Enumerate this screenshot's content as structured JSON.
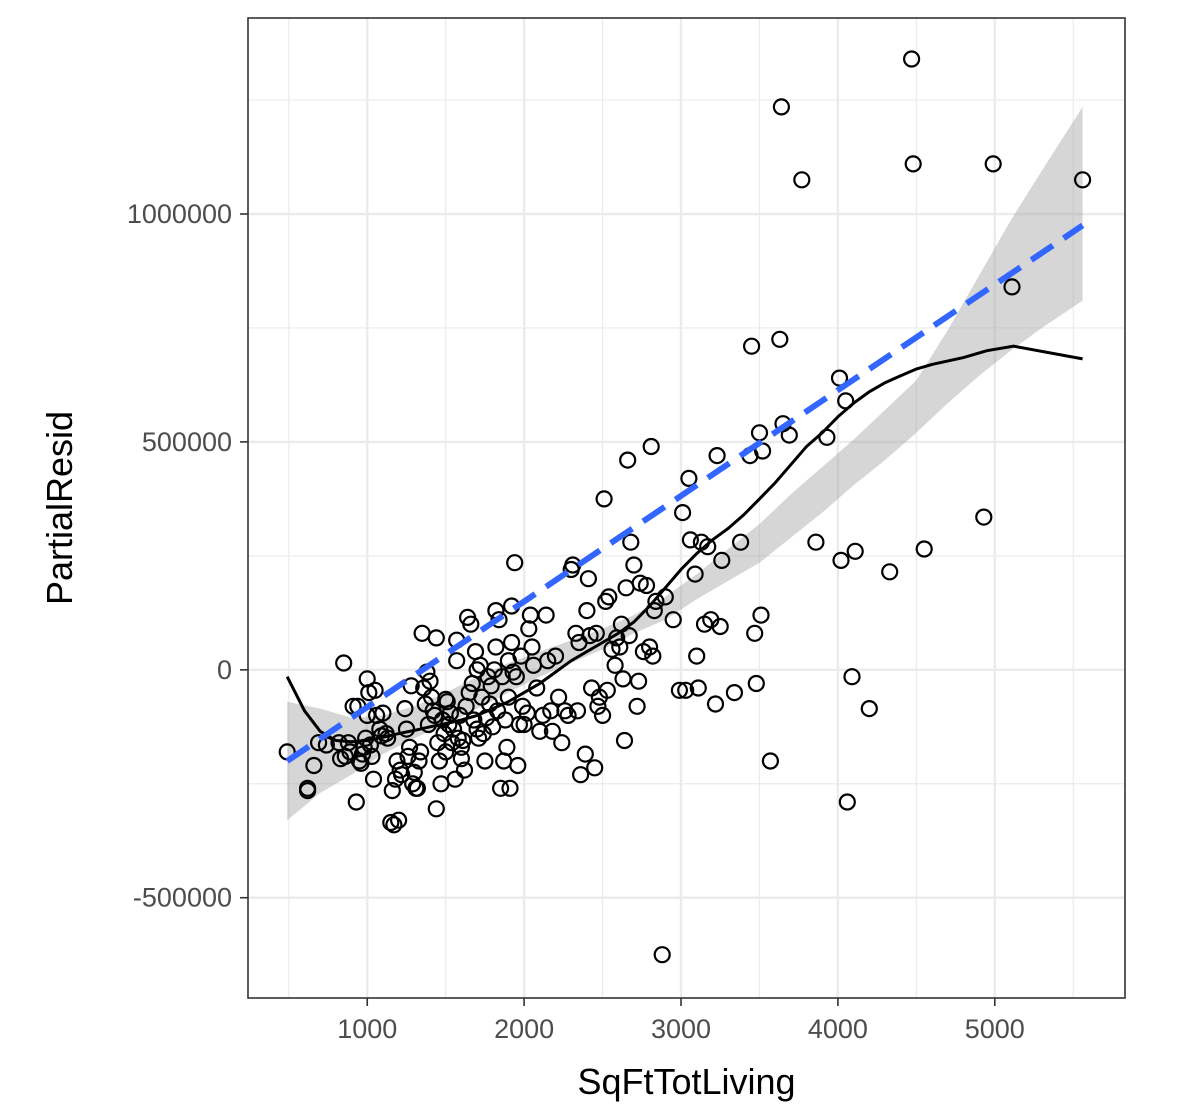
{
  "chart_data": {
    "type": "scatter",
    "xlabel": "SqFtTotLiving",
    "ylabel": "PartialResid",
    "xlim": [
      240,
      5830
    ],
    "ylim": [
      -720000,
      1430000
    ],
    "x_ticks": [
      1000,
      2000,
      3000,
      4000,
      5000
    ],
    "x_tick_labels": [
      "1000",
      "2000",
      "3000",
      "4000",
      "5000"
    ],
    "y_ticks": [
      -500000,
      0,
      500000,
      1000000
    ],
    "y_tick_labels": [
      "-500000",
      "0",
      "500000",
      "1000000"
    ],
    "grid": true,
    "theme": "bw",
    "colors": {
      "points": "#000000",
      "loess": "#000000",
      "fit": "#3366ff",
      "band": "#999999",
      "grid": "#ebebeb",
      "panel_border": "#333333"
    },
    "points": [
      [
        490,
        -180000
      ],
      [
        620,
        -260000
      ],
      [
        620,
        -265000
      ],
      [
        660,
        -210000
      ],
      [
        690,
        -160000
      ],
      [
        740,
        -165000
      ],
      [
        820,
        -160000
      ],
      [
        830,
        -195000
      ],
      [
        850,
        15000
      ],
      [
        860,
        -190000
      ],
      [
        880,
        -160000
      ],
      [
        890,
        -180000
      ],
      [
        910,
        -80000
      ],
      [
        930,
        -290000
      ],
      [
        940,
        -80000
      ],
      [
        950,
        -200000
      ],
      [
        960,
        -205000
      ],
      [
        970,
        -185000
      ],
      [
        980,
        -170000
      ],
      [
        990,
        -150000
      ],
      [
        1000,
        -100000
      ],
      [
        1000,
        -20000
      ],
      [
        1010,
        -50000
      ],
      [
        1020,
        -165000
      ],
      [
        1030,
        -190000
      ],
      [
        1040,
        -240000
      ],
      [
        1050,
        -45000
      ],
      [
        1060,
        -100000
      ],
      [
        1080,
        -130000
      ],
      [
        1090,
        -145000
      ],
      [
        1100,
        -95000
      ],
      [
        1120,
        -140000
      ],
      [
        1130,
        -150000
      ],
      [
        1150,
        -335000
      ],
      [
        1160,
        -265000
      ],
      [
        1170,
        -340000
      ],
      [
        1180,
        -240000
      ],
      [
        1190,
        -200000
      ],
      [
        1200,
        -330000
      ],
      [
        1210,
        -220000
      ],
      [
        1220,
        -230000
      ],
      [
        1240,
        -85000
      ],
      [
        1250,
        -130000
      ],
      [
        1260,
        -190000
      ],
      [
        1270,
        -170000
      ],
      [
        1280,
        -35000
      ],
      [
        1290,
        -250000
      ],
      [
        1300,
        -225000
      ],
      [
        1310,
        -260000
      ],
      [
        1320,
        -260000
      ],
      [
        1330,
        -200000
      ],
      [
        1340,
        -180000
      ],
      [
        1350,
        80000
      ],
      [
        1360,
        -40000
      ],
      [
        1370,
        -75000
      ],
      [
        1380,
        -5000
      ],
      [
        1390,
        -120000
      ],
      [
        1400,
        -25000
      ],
      [
        1410,
        -60000
      ],
      [
        1420,
        -90000
      ],
      [
        1430,
        -100000
      ],
      [
        1440,
        -305000
      ],
      [
        1440,
        70000
      ],
      [
        1450,
        -160000
      ],
      [
        1460,
        -200000
      ],
      [
        1470,
        -250000
      ],
      [
        1480,
        -110000
      ],
      [
        1490,
        -140000
      ],
      [
        1500,
        -180000
      ],
      [
        1500,
        -65000
      ],
      [
        1510,
        -70000
      ],
      [
        1520,
        -120000
      ],
      [
        1530,
        -95000
      ],
      [
        1540,
        -160000
      ],
      [
        1550,
        -130000
      ],
      [
        1560,
        -240000
      ],
      [
        1570,
        20000
      ],
      [
        1570,
        65000
      ],
      [
        1580,
        -150000
      ],
      [
        1590,
        -100000
      ],
      [
        1600,
        -170000
      ],
      [
        1600,
        -195000
      ],
      [
        1610,
        -155000
      ],
      [
        1620,
        -220000
      ],
      [
        1630,
        -80000
      ],
      [
        1640,
        115000
      ],
      [
        1650,
        -50000
      ],
      [
        1660,
        100000
      ],
      [
        1670,
        -30000
      ],
      [
        1680,
        -110000
      ],
      [
        1690,
        40000
      ],
      [
        1700,
        -130000
      ],
      [
        1700,
        0
      ],
      [
        1710,
        -150000
      ],
      [
        1720,
        10000
      ],
      [
        1730,
        -60000
      ],
      [
        1740,
        -140000
      ],
      [
        1750,
        -200000
      ],
      [
        1760,
        -105000
      ],
      [
        1770,
        -15000
      ],
      [
        1780,
        -75000
      ],
      [
        1790,
        -35000
      ],
      [
        1800,
        -125000
      ],
      [
        1810,
        0
      ],
      [
        1820,
        130000
      ],
      [
        1820,
        50000
      ],
      [
        1830,
        -90000
      ],
      [
        1840,
        110000
      ],
      [
        1850,
        -260000
      ],
      [
        1860,
        -15000
      ],
      [
        1870,
        -200000
      ],
      [
        1880,
        -110000
      ],
      [
        1890,
        -170000
      ],
      [
        1900,
        20000
      ],
      [
        1900,
        -60000
      ],
      [
        1910,
        -260000
      ],
      [
        1920,
        140000
      ],
      [
        1920,
        60000
      ],
      [
        1930,
        -5000
      ],
      [
        1940,
        235000
      ],
      [
        1950,
        -15000
      ],
      [
        1960,
        -210000
      ],
      [
        1970,
        -120000
      ],
      [
        1980,
        30000
      ],
      [
        1990,
        -80000
      ],
      [
        2000,
        -120000
      ],
      [
        2020,
        -95000
      ],
      [
        2030,
        90000
      ],
      [
        2040,
        120000
      ],
      [
        2050,
        50000
      ],
      [
        2060,
        10000
      ],
      [
        2080,
        -40000
      ],
      [
        2100,
        -135000
      ],
      [
        2120,
        -100000
      ],
      [
        2140,
        120000
      ],
      [
        2150,
        20000
      ],
      [
        2170,
        -90000
      ],
      [
        2180,
        -135000
      ],
      [
        2200,
        30000
      ],
      [
        2220,
        -60000
      ],
      [
        2240,
        -160000
      ],
      [
        2260,
        -90000
      ],
      [
        2280,
        -100000
      ],
      [
        2300,
        220000
      ],
      [
        2310,
        230000
      ],
      [
        2330,
        80000
      ],
      [
        2340,
        -90000
      ],
      [
        2350,
        60000
      ],
      [
        2360,
        -230000
      ],
      [
        2390,
        -185000
      ],
      [
        2400,
        130000
      ],
      [
        2410,
        200000
      ],
      [
        2420,
        75000
      ],
      [
        2430,
        -40000
      ],
      [
        2450,
        -215000
      ],
      [
        2460,
        80000
      ],
      [
        2470,
        -80000
      ],
      [
        2480,
        -60000
      ],
      [
        2500,
        -100000
      ],
      [
        2510,
        375000
      ],
      [
        2520,
        150000
      ],
      [
        2530,
        -45000
      ],
      [
        2540,
        160000
      ],
      [
        2560,
        45000
      ],
      [
        2580,
        10000
      ],
      [
        2590,
        70000
      ],
      [
        2610,
        50000
      ],
      [
        2620,
        100000
      ],
      [
        2630,
        -20000
      ],
      [
        2640,
        -155000
      ],
      [
        2650,
        180000
      ],
      [
        2660,
        460000
      ],
      [
        2670,
        75000
      ],
      [
        2680,
        280000
      ],
      [
        2700,
        230000
      ],
      [
        2720,
        -80000
      ],
      [
        2730,
        -25000
      ],
      [
        2740,
        190000
      ],
      [
        2760,
        40000
      ],
      [
        2780,
        185000
      ],
      [
        2800,
        50000
      ],
      [
        2810,
        490000
      ],
      [
        2820,
        30000
      ],
      [
        2830,
        130000
      ],
      [
        2840,
        150000
      ],
      [
        2880,
        -625000
      ],
      [
        2900,
        160000
      ],
      [
        2950,
        110000
      ],
      [
        2990,
        -45000
      ],
      [
        3010,
        345000
      ],
      [
        3030,
        -45000
      ],
      [
        3050,
        420000
      ],
      [
        3060,
        285000
      ],
      [
        3090,
        210000
      ],
      [
        3100,
        30000
      ],
      [
        3110,
        -40000
      ],
      [
        3130,
        280000
      ],
      [
        3150,
        100000
      ],
      [
        3170,
        270000
      ],
      [
        3190,
        110000
      ],
      [
        3220,
        -75000
      ],
      [
        3230,
        470000
      ],
      [
        3250,
        95000
      ],
      [
        3260,
        240000
      ],
      [
        3340,
        -50000
      ],
      [
        3380,
        280000
      ],
      [
        3440,
        470000
      ],
      [
        3450,
        710000
      ],
      [
        3470,
        80000
      ],
      [
        3480,
        -30000
      ],
      [
        3500,
        520000
      ],
      [
        3510,
        120000
      ],
      [
        3520,
        480000
      ],
      [
        3570,
        -200000
      ],
      [
        3630,
        725000
      ],
      [
        3640,
        1235000
      ],
      [
        3650,
        540000
      ],
      [
        3690,
        515000
      ],
      [
        3770,
        1075000
      ],
      [
        3860,
        280000
      ],
      [
        3930,
        510000
      ],
      [
        4010,
        640000
      ],
      [
        4020,
        240000
      ],
      [
        4050,
        590000
      ],
      [
        4060,
        -290000
      ],
      [
        4090,
        -15000
      ],
      [
        4110,
        260000
      ],
      [
        4200,
        -85000
      ],
      [
        4330,
        215000
      ],
      [
        4470,
        1340000
      ],
      [
        4480,
        1110000
      ],
      [
        4550,
        265000
      ],
      [
        4930,
        335000
      ],
      [
        4990,
        1110000
      ],
      [
        5110,
        840000
      ],
      [
        5560,
        1075000
      ]
    ],
    "loess_curve": [
      [
        490,
        -15000
      ],
      [
        600,
        -90000
      ],
      [
        700,
        -135000
      ],
      [
        800,
        -155000
      ],
      [
        900,
        -158000
      ],
      [
        1000,
        -155000
      ],
      [
        1100,
        -148000
      ],
      [
        1200,
        -140000
      ],
      [
        1300,
        -133000
      ],
      [
        1400,
        -125000
      ],
      [
        1500,
        -118000
      ],
      [
        1600,
        -110000
      ],
      [
        1700,
        -100000
      ],
      [
        1800,
        -85000
      ],
      [
        1900,
        -70000
      ],
      [
        2000,
        -50000
      ],
      [
        2100,
        -30000
      ],
      [
        2200,
        -5000
      ],
      [
        2300,
        20000
      ],
      [
        2400,
        40000
      ],
      [
        2500,
        60000
      ],
      [
        2600,
        80000
      ],
      [
        2700,
        105000
      ],
      [
        2800,
        140000
      ],
      [
        2900,
        180000
      ],
      [
        3000,
        220000
      ],
      [
        3100,
        255000
      ],
      [
        3200,
        285000
      ],
      [
        3300,
        310000
      ],
      [
        3400,
        340000
      ],
      [
        3500,
        375000
      ],
      [
        3600,
        410000
      ],
      [
        3700,
        450000
      ],
      [
        3800,
        490000
      ],
      [
        3900,
        520000
      ],
      [
        4000,
        555000
      ],
      [
        4100,
        585000
      ],
      [
        4200,
        610000
      ],
      [
        4300,
        630000
      ],
      [
        4400,
        645000
      ],
      [
        4500,
        660000
      ],
      [
        4600,
        670000
      ],
      [
        4800,
        685000
      ],
      [
        4950,
        700000
      ],
      [
        5120,
        710000
      ],
      [
        5560,
        682000
      ]
    ],
    "linear_fit": {
      "x_start": 490,
      "x_end": 5560,
      "y_start": -200000,
      "y_end": 975000
    },
    "confidence_band": {
      "x": [
        490,
        700,
        900,
        1100,
        1300,
        1500,
        1700,
        1900,
        2100,
        2300,
        2500,
        2700,
        2900,
        3100,
        3300,
        3500,
        3700,
        3900,
        4100,
        4300,
        4500,
        4700,
        4900,
        5100,
        5300,
        5560
      ],
      "lower": [
        -330000,
        -270000,
        -230000,
        -185000,
        -150000,
        -120000,
        -85000,
        -50000,
        -15000,
        15000,
        45000,
        80000,
        110000,
        155000,
        195000,
        235000,
        290000,
        345000,
        405000,
        460000,
        520000,
        585000,
        645000,
        700000,
        750000,
        810000
      ],
      "upper": [
        -70000,
        -85000,
        -105000,
        -100000,
        -80000,
        -50000,
        -15000,
        15000,
        40000,
        65000,
        90000,
        120000,
        160000,
        210000,
        265000,
        320000,
        385000,
        445000,
        505000,
        570000,
        635000,
        745000,
        865000,
        985000,
        1095000,
        1235000
      ]
    }
  }
}
